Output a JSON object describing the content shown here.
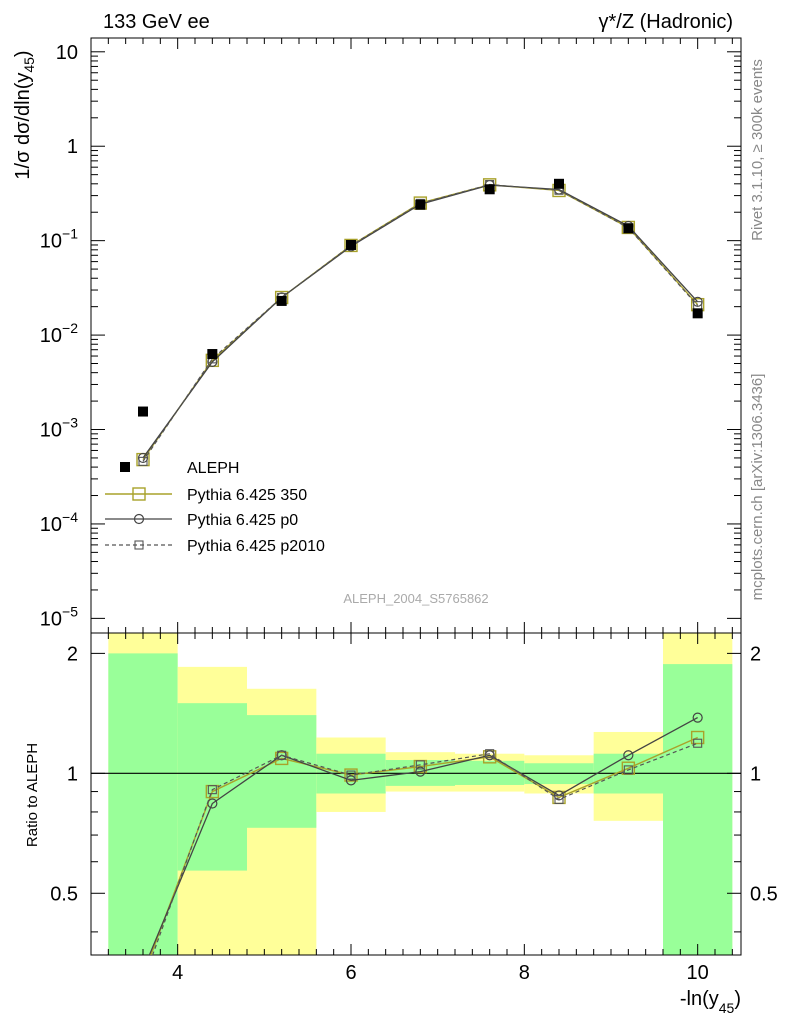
{
  "header": {
    "left": "133 GeV ee",
    "right": "γ*/Z (Hadronic)"
  },
  "side_labels": {
    "rivet": "Rivet 3.1.10, ≥ 300k events",
    "mcplots": "mcplots.cern.ch [arXiv:1306.3436]"
  },
  "watermark": "ALEPH_2004_S5765862",
  "colors": {
    "data": "#000000",
    "p350": "#a9a22a",
    "p0": "#444444",
    "p2010": "#555555",
    "band_inner": "#99ff99",
    "band_outer": "#ffff99"
  },
  "chart_data": [
    {
      "type": "line",
      "ylabel": "1/σ dσ/dln(y45)",
      "yscale": "log",
      "xlim": [
        3.0,
        10.5
      ],
      "ylim": [
        7e-06,
        14
      ],
      "yticks": [
        {
          "v": 10,
          "label": "10"
        },
        {
          "v": 1,
          "label": "1"
        },
        {
          "v": 0.1,
          "label": "10",
          "exp": "−1"
        },
        {
          "v": 0.01,
          "label": "10",
          "exp": "−2"
        },
        {
          "v": 0.001,
          "label": "10",
          "exp": "−3"
        },
        {
          "v": 0.0001,
          "label": "10",
          "exp": "−4"
        },
        {
          "v": 1e-05,
          "label": "10",
          "exp": "−5"
        }
      ],
      "legend": {
        "placement": "bottom-left",
        "entries": [
          "ALEPH",
          "Pythia 6.425 350",
          "Pythia 6.425 p0",
          "Pythia 6.425 p2010"
        ]
      },
      "x": [
        3.6,
        4.4,
        5.2,
        6.0,
        6.8,
        7.6,
        8.4,
        9.2,
        10.0
      ],
      "series": [
        {
          "name": "ALEPH",
          "style": "data",
          "values": [
            0.00155,
            0.0063,
            0.023,
            0.09,
            0.24,
            0.35,
            0.4,
            0.135,
            0.017
          ]
        },
        {
          "name": "Pythia 6.425 350",
          "style": "p350",
          "values": [
            0.00048,
            0.0054,
            0.025,
            0.089,
            0.25,
            0.39,
            0.34,
            0.138,
            0.021
          ]
        },
        {
          "name": "Pythia 6.425 p0",
          "style": "p0",
          "values": [
            0.0005,
            0.0052,
            0.025,
            0.087,
            0.243,
            0.388,
            0.348,
            0.143,
            0.0225
          ]
        },
        {
          "name": "Pythia 6.425 p2010",
          "style": "p2010",
          "values": [
            0.00046,
            0.0056,
            0.025,
            0.089,
            0.248,
            0.393,
            0.342,
            0.137,
            0.0205
          ]
        }
      ]
    },
    {
      "type": "line",
      "ylabel": "Ratio to ALEPH",
      "xlabel": "-ln(y45)",
      "xlim": [
        3.0,
        10.5
      ],
      "ylim": [
        0.35,
        2.25
      ],
      "yscale": "log",
      "xticks": [
        4,
        6,
        8,
        10
      ],
      "yticks": [
        {
          "v": 0.5,
          "label": "0.5"
        },
        {
          "v": 1,
          "label": "1"
        },
        {
          "v": 2,
          "label": "2"
        }
      ],
      "bands": [
        {
          "x0": 3.2,
          "x1": 4.0,
          "inner": [
            0.2,
            2.0
          ],
          "outer": [
            0.2,
            2.7
          ]
        },
        {
          "x0": 4.0,
          "x1": 4.8,
          "inner": [
            0.57,
            1.5
          ],
          "outer": [
            0.2,
            1.85
          ]
        },
        {
          "x0": 4.8,
          "x1": 5.6,
          "inner": [
            0.73,
            1.4
          ],
          "outer": [
            0.2,
            1.63
          ]
        },
        {
          "x0": 5.6,
          "x1": 6.4,
          "inner": [
            0.89,
            1.12
          ],
          "outer": [
            0.8,
            1.23
          ]
        },
        {
          "x0": 6.4,
          "x1": 7.2,
          "inner": [
            0.93,
            1.08
          ],
          "outer": [
            0.9,
            1.13
          ]
        },
        {
          "x0": 7.2,
          "x1": 8.0,
          "inner": [
            0.935,
            1.075
          ],
          "outer": [
            0.9,
            1.12
          ]
        },
        {
          "x0": 8.0,
          "x1": 8.8,
          "inner": [
            0.94,
            1.06
          ],
          "outer": [
            0.89,
            1.11
          ]
        },
        {
          "x0": 8.8,
          "x1": 9.6,
          "inner": [
            0.89,
            1.12
          ],
          "outer": [
            0.76,
            1.27
          ]
        },
        {
          "x0": 9.6,
          "x1": 10.4,
          "inner": [
            0.2,
            1.88
          ],
          "outer": [
            0.2,
            2.7
          ]
        }
      ],
      "series": [
        {
          "name": "Pythia 6.425 350",
          "style": "p350",
          "values": [
            0.31,
            0.9,
            1.09,
            0.99,
            1.04,
            1.1,
            0.87,
            1.03,
            1.23
          ]
        },
        {
          "name": "Pythia 6.425 p0",
          "style": "p0",
          "values": [
            0.32,
            0.84,
            1.11,
            0.96,
            1.01,
            1.11,
            0.88,
            1.11,
            1.38
          ]
        },
        {
          "name": "Pythia 6.425 p2010",
          "style": "p2010",
          "values": [
            0.3,
            0.91,
            1.11,
            0.99,
            1.05,
            1.12,
            0.86,
            1.02,
            1.19
          ]
        }
      ]
    }
  ]
}
